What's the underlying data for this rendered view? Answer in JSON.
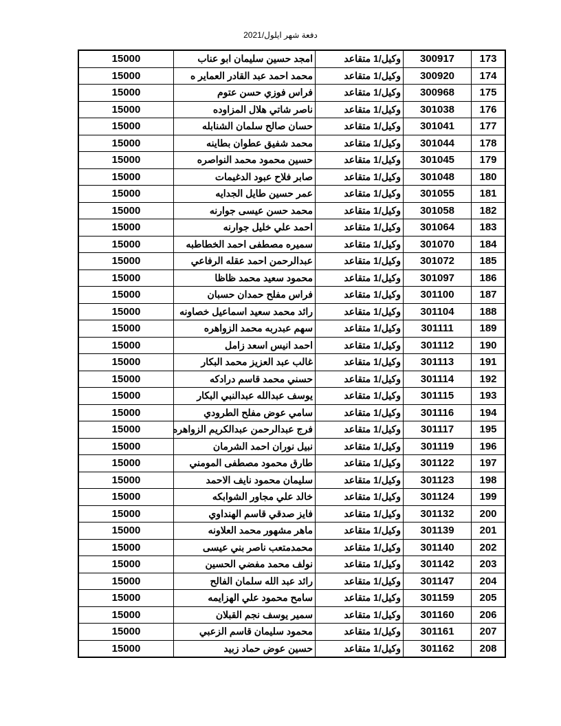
{
  "title": "دفعة شهر ايلول/2021",
  "rows": [
    {
      "num": "173",
      "id": "300917",
      "rank": "وكيل/1 متقاعد",
      "name": "امجد حسين سليمان ابو عناب",
      "amount": "15000"
    },
    {
      "num": "174",
      "id": "300920",
      "rank": "وكيل/1 متقاعد",
      "name": "محمد احمد عبد القادر العماير ه",
      "amount": "15000"
    },
    {
      "num": "175",
      "id": "300968",
      "rank": "وكيل/1 متقاعد",
      "name": "فراس فوزي حسن عتوم",
      "amount": "15000"
    },
    {
      "num": "176",
      "id": "301038",
      "rank": "وكيل/1 متقاعد",
      "name": "ناصر شاتي هلال المزاوده",
      "amount": "15000"
    },
    {
      "num": "177",
      "id": "301041",
      "rank": "وكيل/1 متقاعد",
      "name": "حسان صالح سلمان الشنابله",
      "amount": "15000"
    },
    {
      "num": "178",
      "id": "301044",
      "rank": "وكيل/1 متقاعد",
      "name": "محمد شفيق عطوان بطاينه",
      "amount": "15000"
    },
    {
      "num": "179",
      "id": "301045",
      "rank": "وكيل/1 متقاعد",
      "name": "حسين محمود محمد النواصره",
      "amount": "15000"
    },
    {
      "num": "180",
      "id": "301048",
      "rank": "وكيل/1 متقاعد",
      "name": "صابر فلاح عبود الدغيمات",
      "amount": "15000"
    },
    {
      "num": "181",
      "id": "301055",
      "rank": "وكيل/1 متقاعد",
      "name": "عمر حسين طايل الجدايه",
      "amount": "15000"
    },
    {
      "num": "182",
      "id": "301058",
      "rank": "وكيل/1 متقاعد",
      "name": "محمد حسن عيسى جوارنه",
      "amount": "15000"
    },
    {
      "num": "183",
      "id": "301064",
      "rank": "وكيل/1 متقاعد",
      "name": "احمد علي خليل جوارنه",
      "amount": "15000"
    },
    {
      "num": "184",
      "id": "301070",
      "rank": "وكيل/1 متقاعد",
      "name": "سميره مصطفى احمد الخطاطبه",
      "amount": "15000"
    },
    {
      "num": "185",
      "id": "301072",
      "rank": "وكيل/1 متقاعد",
      "name": "عبدالرحمن احمد عقله الرفاعي",
      "amount": "15000"
    },
    {
      "num": "186",
      "id": "301097",
      "rank": "وكيل/1 متقاعد",
      "name": "محمود سعيد محمد ظاظا",
      "amount": "15000"
    },
    {
      "num": "187",
      "id": "301100",
      "rank": "وكيل/1 متقاعد",
      "name": "فراس مفلح حمدان حسبان",
      "amount": "15000"
    },
    {
      "num": "188",
      "id": "301104",
      "rank": "وكيل/1 متقاعد",
      "name": "رائد محمد سعيد اسماعيل خصاونه",
      "amount": "15000"
    },
    {
      "num": "189",
      "id": "301111",
      "rank": "وكيل/1 متقاعد",
      "name": "سهم عبدربه محمد الزواهره",
      "amount": "15000"
    },
    {
      "num": "190",
      "id": "301112",
      "rank": "وكيل/1 متقاعد",
      "name": "احمد انيس اسعد زامل",
      "amount": "15000"
    },
    {
      "num": "191",
      "id": "301113",
      "rank": "وكيل/1 متقاعد",
      "name": "غالب عبد العزيز محمد البكار",
      "amount": "15000"
    },
    {
      "num": "192",
      "id": "301114",
      "rank": "وكيل/1 متقاعد",
      "name": "حسني محمد قاسم درادكه",
      "amount": "15000"
    },
    {
      "num": "193",
      "id": "301115",
      "rank": "وكيل/1 متقاعد",
      "name": "يوسف عبدالله عبدالنبي البكار",
      "amount": "15000"
    },
    {
      "num": "194",
      "id": "301116",
      "rank": "وكيل/1 متقاعد",
      "name": "سامي عوض مفلح الطرودي",
      "amount": "15000"
    },
    {
      "num": "195",
      "id": "301117",
      "rank": "وكيل/1 متقاعد",
      "name": "فرج عبدالرحمن عبدالكريم الزواهره",
      "amount": "15000"
    },
    {
      "num": "196",
      "id": "301119",
      "rank": "وكيل/1 متقاعد",
      "name": "نبيل نوران احمد الشرمان",
      "amount": "15000"
    },
    {
      "num": "197",
      "id": "301122",
      "rank": "وكيل/1 متقاعد",
      "name": "طارق محمود مصطفى المومني",
      "amount": "15000"
    },
    {
      "num": "198",
      "id": "301123",
      "rank": "وكيل/1 متقاعد",
      "name": "سليمان محمود نايف الاحمد",
      "amount": "15000"
    },
    {
      "num": "199",
      "id": "301124",
      "rank": "وكيل/1 متقاعد",
      "name": "خالد علي مجاور الشوابكه",
      "amount": "15000"
    },
    {
      "num": "200",
      "id": "301132",
      "rank": "وكيل/1 متقاعد",
      "name": "فايز صدقي قاسم الهنداوي",
      "amount": "15000"
    },
    {
      "num": "201",
      "id": "301139",
      "rank": "وكيل/1 متقاعد",
      "name": "ماهر مشهور محمد العلاونه",
      "amount": "15000"
    },
    {
      "num": "202",
      "id": "301140",
      "rank": "وكيل/1 متقاعد",
      "name": "محمدمتعب ناصر بني عيسى",
      "amount": "15000"
    },
    {
      "num": "203",
      "id": "301142",
      "rank": "وكيل/1 متقاعد",
      "name": "نولف محمد مفضي الحسين",
      "amount": "15000"
    },
    {
      "num": "204",
      "id": "301147",
      "rank": "وكيل/1 متقاعد",
      "name": "رائد عبد الله سلمان  الفالح",
      "amount": "15000"
    },
    {
      "num": "205",
      "id": "301159",
      "rank": "وكيل/1 متقاعد",
      "name": "سامح محمود علي الهزايمه",
      "amount": "15000"
    },
    {
      "num": "206",
      "id": "301160",
      "rank": "وكيل/1 متقاعد",
      "name": "سمير يوسف نجم القبلان",
      "amount": "15000"
    },
    {
      "num": "207",
      "id": "301161",
      "rank": "وكيل/1 متقاعد",
      "name": "محمود سليمان قاسم الزعبي",
      "amount": "15000"
    },
    {
      "num": "208",
      "id": "301162",
      "rank": "وكيل/1 متقاعد",
      "name": "حسين عوض حماد زبيد",
      "amount": "15000"
    }
  ]
}
